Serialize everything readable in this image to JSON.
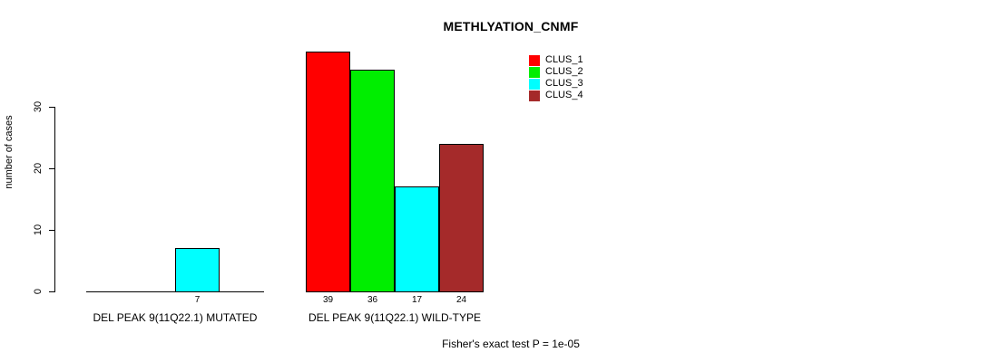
{
  "chart_data": {
    "type": "bar",
    "title": "METHLYATION_CNMF",
    "ylabel": "number of cases",
    "yticks": [
      0,
      10,
      20,
      30
    ],
    "ylim": [
      0,
      39
    ],
    "series_names": [
      "CLUS_1",
      "CLUS_2",
      "CLUS_3",
      "CLUS_4"
    ],
    "colors": [
      "#ff0000",
      "#00ee00",
      "#00ffff",
      "#a52a2a"
    ],
    "groups": [
      {
        "label": "DEL PEAK 9(11Q22.1) MUTATED",
        "values": [
          0,
          0,
          7,
          0
        ],
        "bar_labels": [
          "",
          "",
          "7",
          ""
        ]
      },
      {
        "label": "DEL PEAK 9(11Q22.1) WILD-TYPE",
        "values": [
          39,
          36,
          17,
          24
        ],
        "bar_labels": [
          "39",
          "36",
          "17",
          "24"
        ]
      }
    ],
    "footnote": "Fisher's exact test P = 1e-05",
    "legend_position": "top-right",
    "grid": false
  }
}
